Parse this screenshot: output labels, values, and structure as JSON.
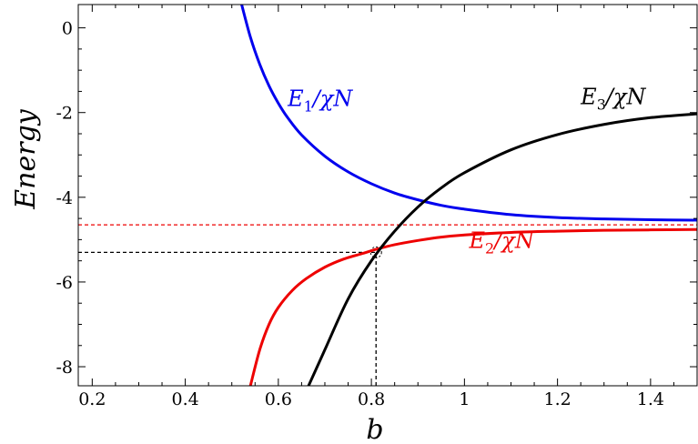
{
  "chart_data": {
    "type": "line",
    "xlabel": "b",
    "ylabel": "Energy",
    "xlim": [
      0.17,
      1.5
    ],
    "ylim": [
      -8.45,
      0.55
    ],
    "x_ticks": [
      0.2,
      0.4,
      0.6,
      0.8,
      1.0,
      1.2,
      1.4
    ],
    "x_tick_labels": [
      "0.2",
      "0.4",
      "0.6",
      "0.8",
      "1",
      "1.2",
      "1.4"
    ],
    "y_ticks": [
      0,
      -2,
      -4,
      -6,
      -8
    ],
    "y_tick_labels": [
      "0",
      "-2",
      "-4",
      "-6",
      "-8"
    ],
    "grid": false,
    "series": [
      {
        "name": "E1/χN",
        "label_main": "E",
        "label_sub": "1",
        "label_rest": "/χN",
        "color": "#0000ee",
        "x": [
          0.52,
          0.54,
          0.56,
          0.58,
          0.6,
          0.62,
          0.65,
          0.7,
          0.75,
          0.8,
          0.85,
          0.9,
          0.95,
          1.0,
          1.1,
          1.2,
          1.3,
          1.4,
          1.5
        ],
        "y": [
          0.6,
          -0.22,
          -0.86,
          -1.37,
          -1.78,
          -2.12,
          -2.53,
          -3.03,
          -3.4,
          -3.68,
          -3.9,
          -4.06,
          -4.19,
          -4.28,
          -4.41,
          -4.48,
          -4.51,
          -4.53,
          -4.54
        ]
      },
      {
        "name": "E2/χN",
        "label_main": "E",
        "label_sub": "2",
        "label_rest": "/χN",
        "color": "#ee0000",
        "x": [
          0.54,
          0.56,
          0.58,
          0.6,
          0.63,
          0.66,
          0.7,
          0.74,
          0.78,
          0.81,
          0.85,
          0.9,
          0.95,
          1.0,
          1.1,
          1.2,
          1.3,
          1.4,
          1.5
        ],
        "y": [
          -8.45,
          -7.6,
          -7.0,
          -6.6,
          -6.2,
          -5.92,
          -5.65,
          -5.46,
          -5.33,
          -5.23,
          -5.12,
          -5.02,
          -4.94,
          -4.89,
          -4.83,
          -4.8,
          -4.78,
          -4.77,
          -4.76
        ]
      },
      {
        "name": "E3/χN",
        "label_main": "E",
        "label_sub": "3",
        "label_rest": "/χN",
        "color": "#000000",
        "x": [
          0.665,
          0.7,
          0.75,
          0.8,
          0.85,
          0.9,
          0.95,
          1.0,
          1.1,
          1.2,
          1.3,
          1.4,
          1.5
        ],
        "y": [
          -8.45,
          -7.6,
          -6.4,
          -5.5,
          -4.8,
          -4.23,
          -3.78,
          -3.42,
          -2.88,
          -2.52,
          -2.28,
          -2.12,
          -2.03
        ]
      }
    ],
    "reference_lines": [
      {
        "kind": "horizontal",
        "y": -4.65,
        "x_from": 0.17,
        "x_to": 1.5,
        "color": "#ee0000",
        "dash": true
      },
      {
        "kind": "horizontal",
        "y": -5.3,
        "x_from": 0.17,
        "x_to": 0.81,
        "color": "#000000",
        "dash": true
      },
      {
        "kind": "vertical",
        "x": 0.81,
        "y_from": -8.45,
        "y_to": -5.3,
        "color": "#000000",
        "dash": true
      }
    ],
    "marker": {
      "kind": "dashed-circle",
      "x": 0.81,
      "y": -5.3
    }
  }
}
